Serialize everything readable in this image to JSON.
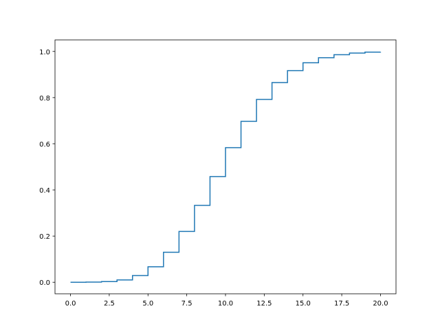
{
  "chart_data": {
    "type": "step",
    "step_where": "post",
    "x": [
      0,
      1,
      2,
      3,
      4,
      5,
      6,
      7,
      8,
      9,
      10,
      11,
      12,
      13,
      14,
      15,
      16,
      17,
      18,
      19,
      20
    ],
    "series": [
      {
        "color": "#1f77b4",
        "values": [
          0.0,
          0.0005,
          0.003,
          0.01,
          0.029,
          0.067,
          0.13,
          0.22,
          0.333,
          0.458,
          0.583,
          0.697,
          0.792,
          0.865,
          0.917,
          0.951,
          0.973,
          0.986,
          0.993,
          0.997,
          0.998
        ]
      }
    ],
    "xlim": [
      -1,
      21
    ],
    "ylim": [
      -0.05,
      1.05
    ],
    "xticks": [
      {
        "value": 0,
        "label": "0.0"
      },
      {
        "value": 2.5,
        "label": "2.5"
      },
      {
        "value": 5,
        "label": "5.0"
      },
      {
        "value": 7.5,
        "label": "7.5"
      },
      {
        "value": 10,
        "label": "10.0"
      },
      {
        "value": 12.5,
        "label": "12.5"
      },
      {
        "value": 15,
        "label": "15.0"
      },
      {
        "value": 17.5,
        "label": "17.5"
      },
      {
        "value": 20,
        "label": "20.0"
      }
    ],
    "yticks": [
      {
        "value": 0,
        "label": "0.0"
      },
      {
        "value": 0.2,
        "label": "0.2"
      },
      {
        "value": 0.4,
        "label": "0.4"
      },
      {
        "value": 0.6,
        "label": "0.6"
      },
      {
        "value": 0.8,
        "label": "0.8"
      },
      {
        "value": 1,
        "label": "1.0"
      }
    ],
    "grid": false
  }
}
